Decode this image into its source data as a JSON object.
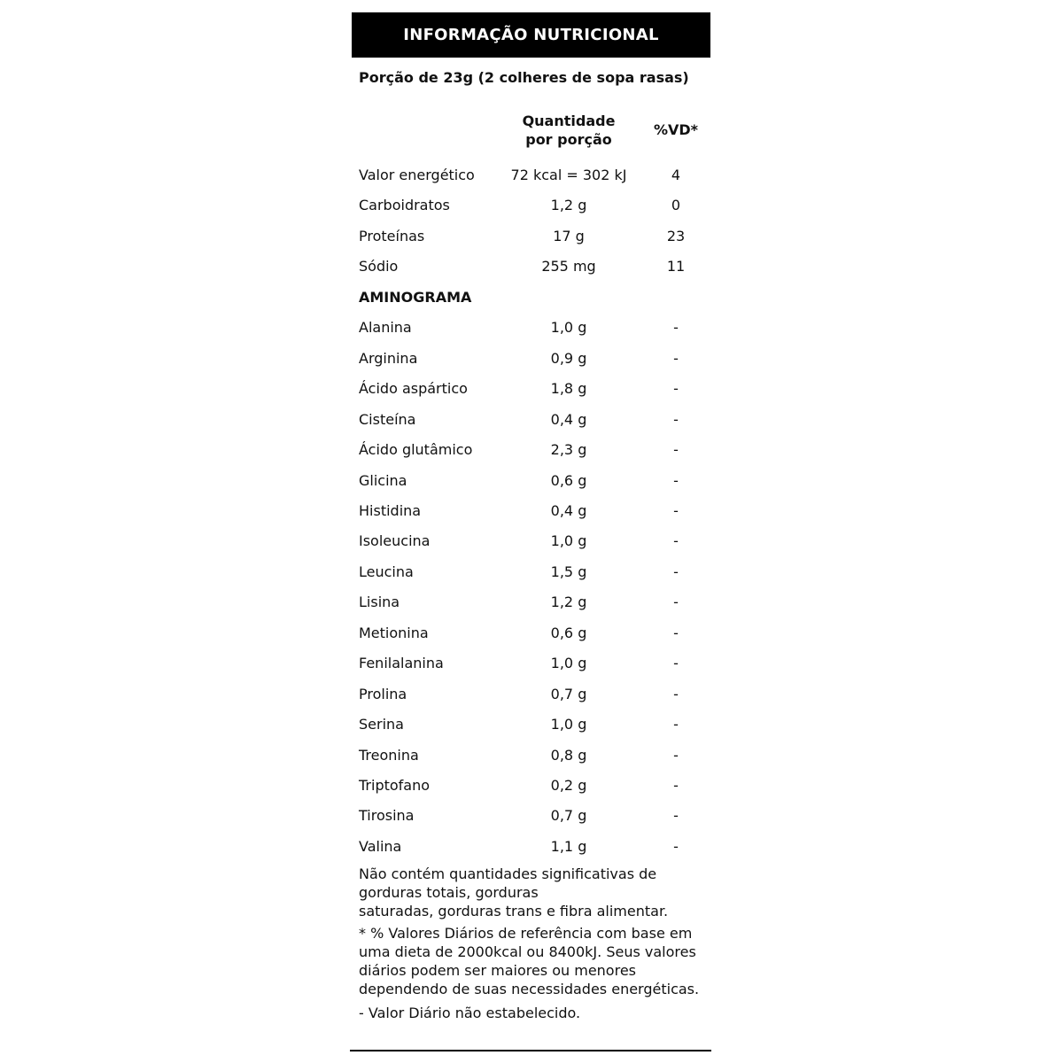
{
  "title": "INFORMAÇÃO NUTRICIONAL",
  "portion": "Porção de 23g (2 colheres de sopa rasas)",
  "columns": {
    "quantity_line1": "Quantidade",
    "quantity_line2": "por porção",
    "vd": "%VD*"
  },
  "rows": [
    {
      "name": "Valor energético",
      "qty": "72 kcal = 302 kJ",
      "vd": "4"
    },
    {
      "name": "Carboidratos",
      "qty": "1,2 g",
      "vd": "0"
    },
    {
      "name": "Proteínas",
      "qty": "17 g",
      "vd": "23"
    },
    {
      "name": "Sódio",
      "qty": "255 mg",
      "vd": "11"
    },
    {
      "name": "AMINOGRAMA",
      "qty": "",
      "vd": "",
      "section": true
    },
    {
      "name": "Alanina",
      "qty": "1,0 g",
      "vd": "-"
    },
    {
      "name": "Arginina",
      "qty": "0,9 g",
      "vd": "-"
    },
    {
      "name": "Ácido aspártico",
      "qty": "1,8 g",
      "vd": "-"
    },
    {
      "name": "Cisteína",
      "qty": "0,4 g",
      "vd": "-"
    },
    {
      "name": "Ácido glutâmico",
      "qty": "2,3 g",
      "vd": "-"
    },
    {
      "name": "Glicina",
      "qty": "0,6 g",
      "vd": "-"
    },
    {
      "name": "Histidina",
      "qty": "0,4 g",
      "vd": "-"
    },
    {
      "name": "Isoleucina",
      "qty": "1,0 g",
      "vd": "-"
    },
    {
      "name": "Leucina",
      "qty": "1,5 g",
      "vd": "-"
    },
    {
      "name": "Lisina",
      "qty": "1,2 g",
      "vd": "-"
    },
    {
      "name": "Metionina",
      "qty": "0,6 g",
      "vd": "-"
    },
    {
      "name": "Fenilalanina",
      "qty": "1,0 g",
      "vd": "-"
    },
    {
      "name": "Prolina",
      "qty": "0,7 g",
      "vd": "-"
    },
    {
      "name": "Serina",
      "qty": "1,0 g",
      "vd": "-"
    },
    {
      "name": "Treonina",
      "qty": "0,8 g",
      "vd": "-"
    },
    {
      "name": "Triptofano",
      "qty": "0,2 g",
      "vd": "-"
    },
    {
      "name": "Tirosina",
      "qty": "0,7 g",
      "vd": "-"
    },
    {
      "name": "Valina",
      "qty": "1,1 g",
      "vd": "-"
    }
  ],
  "notes": {
    "not_significant_line1": "Não contém quantidades significativas de gorduras totais, gorduras",
    "not_significant_line2": "saturadas, gorduras trans e fibra alimentar.",
    "daily_values": "* % Valores Diários de referência com base em uma dieta de 2000kcal ou 8400kJ. Seus valores diários podem ser maiores ou menores dependendo de suas necessidades energéticas.",
    "not_established": "- Valor Diário não estabelecido."
  }
}
